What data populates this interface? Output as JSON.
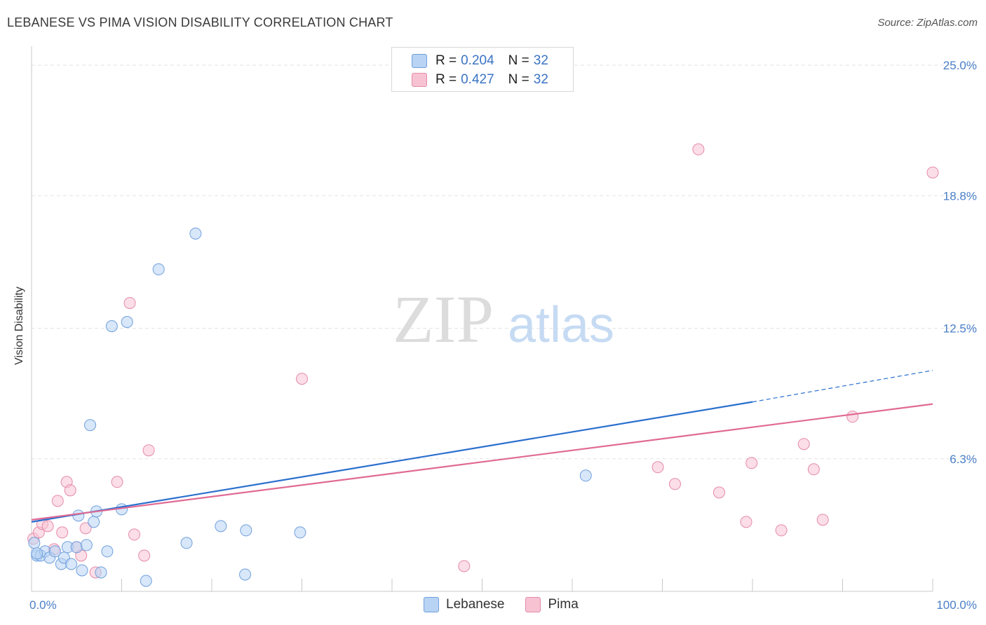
{
  "header": {
    "title": "LEBANESE VS PIMA VISION DISABILITY CORRELATION CHART",
    "source": "Source: ZipAtlas.com"
  },
  "watermark": {
    "part1": "ZIP",
    "part2": "atlas"
  },
  "legend": {
    "rows": [
      {
        "r_label": "R =",
        "r_value": "0.204",
        "n_label": "N =",
        "n_value": "32"
      },
      {
        "r_label": "R =",
        "r_value": "0.427",
        "n_label": "N =",
        "n_value": "32"
      }
    ],
    "bottom": [
      "Lebanese",
      "Pima"
    ]
  },
  "colors": {
    "lebanese_fill": "#b8d3f4",
    "lebanese_stroke": "#6f9fdc",
    "lebanese_line": "#2a6fcf",
    "pima_fill": "#f7c3d3",
    "pima_stroke": "#e58aa8",
    "pima_line": "#e06a94",
    "tick_text": "#4a7fc8"
  },
  "chart_data": {
    "type": "scatter",
    "title": "LEBANESE VS PIMA VISION DISABILITY CORRELATION CHART",
    "xlabel": "",
    "ylabel": "Vision Disability",
    "xlim": [
      0,
      100
    ],
    "ylim": [
      0,
      25.5
    ],
    "x_tick_labels": [
      "0.0%",
      "100.0%"
    ],
    "y_ticks": [
      6.3,
      12.5,
      18.8,
      25.0
    ],
    "y_tick_labels": [
      "6.3%",
      "12.5%",
      "18.8%",
      "25.0%"
    ],
    "series": [
      {
        "name": "Lebanese",
        "points": [
          [
            0.3,
            2.3
          ],
          [
            0.6,
            1.7
          ],
          [
            1.0,
            1.7
          ],
          [
            1.5,
            1.9
          ],
          [
            2.0,
            1.6
          ],
          [
            2.6,
            1.9
          ],
          [
            3.3,
            1.3
          ],
          [
            3.6,
            1.6
          ],
          [
            4.0,
            2.1
          ],
          [
            4.4,
            1.3
          ],
          [
            5.0,
            2.1
          ],
          [
            5.6,
            1.0
          ],
          [
            5.2,
            3.6
          ],
          [
            6.1,
            2.2
          ],
          [
            6.5,
            7.9
          ],
          [
            6.9,
            3.3
          ],
          [
            7.2,
            3.8
          ],
          [
            7.7,
            0.9
          ],
          [
            8.4,
            1.9
          ],
          [
            8.9,
            12.6
          ],
          [
            10.0,
            3.9
          ],
          [
            10.6,
            12.8
          ],
          [
            12.7,
            0.5
          ],
          [
            14.1,
            15.3
          ],
          [
            17.2,
            2.3
          ],
          [
            18.2,
            17.0
          ],
          [
            21.0,
            3.1
          ],
          [
            23.8,
            2.9
          ],
          [
            23.7,
            0.8
          ],
          [
            29.8,
            2.8
          ],
          [
            61.5,
            5.5
          ],
          [
            0.6,
            1.8
          ]
        ],
        "trend": {
          "x0": 0,
          "y0": 3.3,
          "x1": 80,
          "y1": 9.0,
          "dashed_to_x": 100,
          "dashed_to_y": 10.5
        }
      },
      {
        "name": "Pima",
        "points": [
          [
            0.2,
            2.5
          ],
          [
            0.8,
            2.8
          ],
          [
            1.2,
            3.2
          ],
          [
            1.8,
            3.1
          ],
          [
            2.5,
            2.0
          ],
          [
            2.9,
            4.3
          ],
          [
            3.4,
            2.8
          ],
          [
            3.9,
            5.2
          ],
          [
            4.3,
            4.8
          ],
          [
            5.0,
            2.1
          ],
          [
            5.5,
            1.7
          ],
          [
            6.0,
            3.0
          ],
          [
            7.1,
            0.9
          ],
          [
            9.5,
            5.2
          ],
          [
            10.9,
            13.7
          ],
          [
            11.4,
            2.7
          ],
          [
            12.5,
            1.7
          ],
          [
            13.0,
            6.7
          ],
          [
            30.0,
            10.1
          ],
          [
            48.0,
            1.2
          ],
          [
            69.5,
            5.9
          ],
          [
            71.4,
            5.1
          ],
          [
            74.0,
            21.0
          ],
          [
            76.3,
            4.7
          ],
          [
            79.3,
            3.3
          ],
          [
            79.9,
            6.1
          ],
          [
            83.2,
            2.9
          ],
          [
            85.7,
            7.0
          ],
          [
            86.8,
            5.8
          ],
          [
            87.8,
            3.4
          ],
          [
            91.1,
            8.3
          ],
          [
            100.0,
            19.9
          ]
        ],
        "trend": {
          "x0": 0,
          "y0": 3.4,
          "x1": 100,
          "y1": 8.9
        }
      }
    ]
  }
}
